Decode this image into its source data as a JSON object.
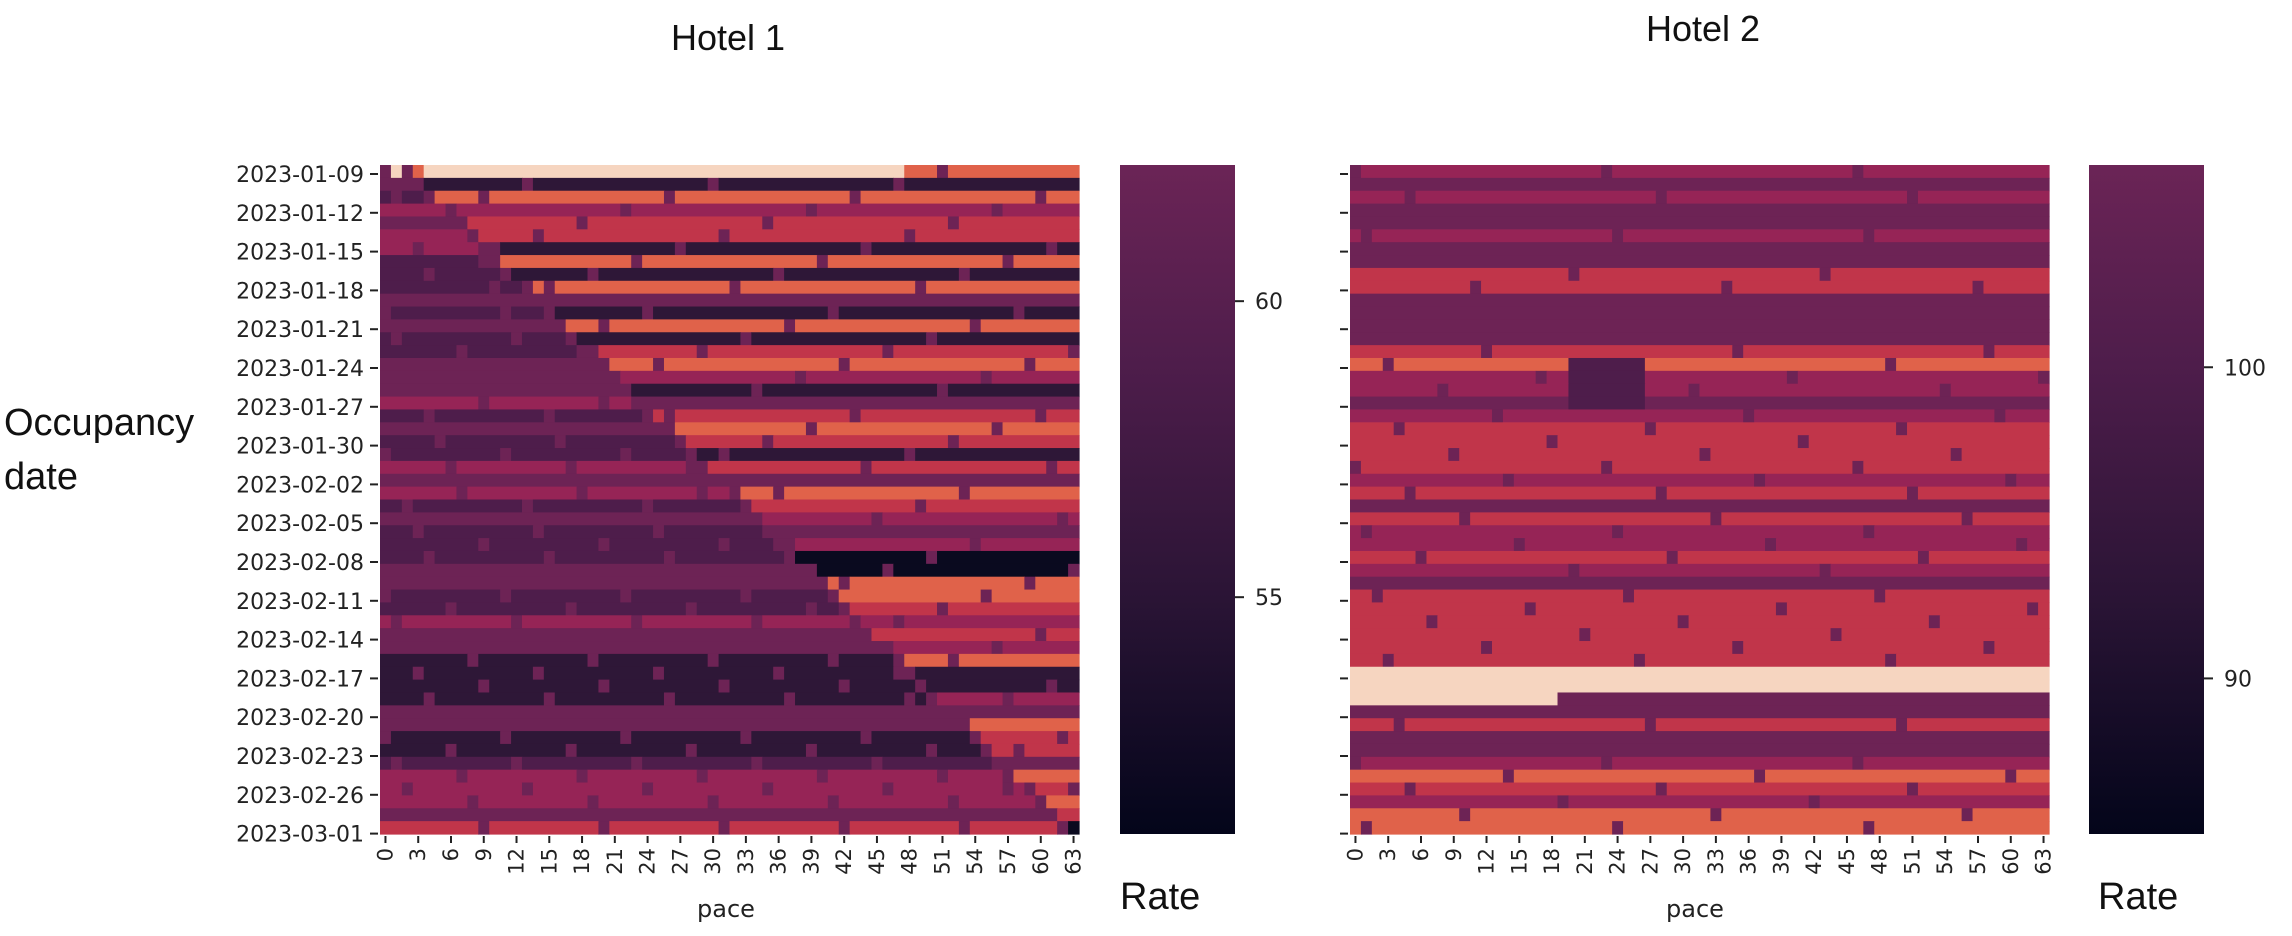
{
  "ylabel_lines": [
    "Occupancy",
    "date"
  ],
  "chart_data": [
    {
      "type": "heatmap",
      "title": "Hotel 1",
      "xlabel": "pace",
      "x_ticks": [
        "0",
        "3",
        "6",
        "9",
        "12",
        "15",
        "18",
        "21",
        "24",
        "27",
        "30",
        "33",
        "36",
        "39",
        "42",
        "45",
        "48",
        "51",
        "54",
        "57",
        "60",
        "63"
      ],
      "y_ticks": [
        "2023-01-09",
        "2023-01-12",
        "2023-01-15",
        "2023-01-18",
        "2023-01-21",
        "2023-01-24",
        "2023-01-27",
        "2023-01-30",
        "2023-02-02",
        "2023-02-05",
        "2023-02-08",
        "2023-02-11",
        "2023-02-14",
        "2023-02-17",
        "2023-02-20",
        "2023-02-23",
        "2023-02-26",
        "2023-03-01"
      ],
      "colorbar": {
        "label": "Rate",
        "ticks": [
          "60",
          "55"
        ],
        "tick_values": [
          60,
          55
        ],
        "range": [
          51,
          62.3
        ]
      },
      "x_range": [
        0,
        64
      ],
      "y_range": [
        "2023-01-08",
        "2023-03-01"
      ]
    },
    {
      "type": "heatmap",
      "title": "Hotel 2",
      "xlabel": "pace",
      "x_ticks": [
        "0",
        "3",
        "6",
        "9",
        "12",
        "15",
        "18",
        "21",
        "24",
        "27",
        "30",
        "33",
        "36",
        "39",
        "42",
        "45",
        "48",
        "51",
        "54",
        "57",
        "60",
        "63"
      ],
      "y_ticks": [],
      "colorbar": {
        "label": "Rate",
        "ticks": [
          "100",
          "90"
        ],
        "tick_values": [
          100,
          90
        ],
        "range": [
          85,
          106.5
        ]
      },
      "x_range": [
        0,
        64
      ],
      "y_range": [
        "2023-01-08",
        "2023-03-01"
      ]
    }
  ]
}
